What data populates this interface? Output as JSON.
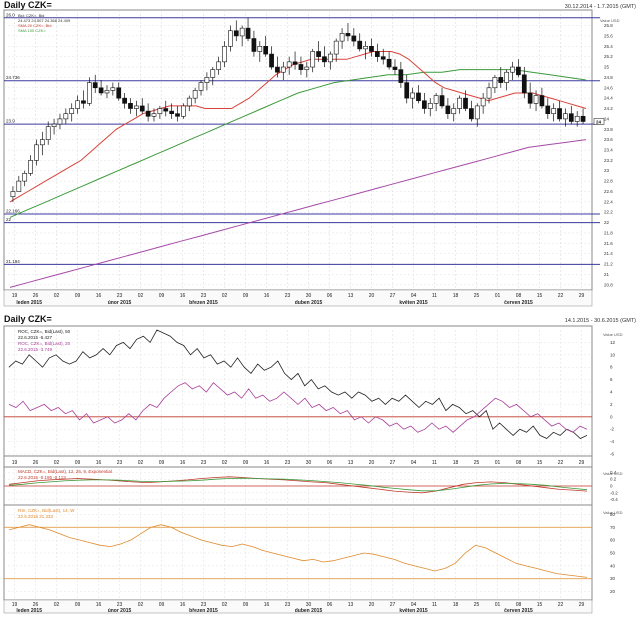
{
  "top": {
    "title": "Daily CZK=",
    "date_range": "30.12.2014 - 1.7.2015 (GMT)",
    "unit": "Value USD",
    "legend_lines": [
      "Bid: CZK=, Bid",
      "24.473 24.507 24.368 24.409",
      "SMA 20 CZK=, Bid",
      "SMA 100 CZK="
    ],
    "hlines": [
      {
        "label": "26.0",
        "value": 25.95,
        "color": "#3a3aa0"
      },
      {
        "label": "24.736",
        "value": 24.736,
        "color": "#3a3aa0"
      },
      {
        "label": "23.9",
        "value": 23.9,
        "color": "#3a3aa0"
      },
      {
        "label": "22.166",
        "value": 22.166,
        "color": "#3a3aa0"
      },
      {
        "label": "22",
        "value": 22.0,
        "color": "#3a3aa0"
      },
      {
        "label": "21.194",
        "value": 21.194,
        "color": "#3a3aa0"
      }
    ],
    "yticks": [
      "25.8",
      "25.6",
      "25.4",
      "25.2",
      "25",
      "24.8",
      "24.6",
      "24.4",
      "24.2",
      "24",
      "23.8",
      "23.6",
      "23.4",
      "23.2",
      "23",
      "22.8",
      "22.6",
      "22.4",
      "22.2",
      "22",
      "21.8",
      "21.6",
      "21.4",
      "21.2",
      "21",
      "20.8"
    ],
    "current_value": "24"
  },
  "bottom": {
    "title": "Daily CZK=",
    "date_range": "14.1.2015 - 30.6.2015 (GMT)",
    "roc1_legend": [
      "ROC, CZK=, Bid(Last), 50",
      "22.6.2015 -5.427"
    ],
    "roc2_legend": [
      "ROC, CZK=, Bid(Last), 20",
      "22.6.2015 -3.749"
    ],
    "roc_yticks": [
      "Value USD",
      "12",
      "10",
      "8",
      "6",
      "4",
      "2",
      "0",
      "-2",
      "-4",
      "-6"
    ],
    "macd_legend": [
      "MACD, CZK=, Bid(Last), 12, 26, 9, Exponential",
      "22.6.2015 -0.195 -0.113"
    ],
    "macd_yticks": [
      "Value USD",
      "0.4",
      "0.2",
      "0",
      "-0.2",
      "-0.4"
    ],
    "rsi_legend": [
      "RSI, CZK=, Bid(Last), 14, W",
      "22.6.2015 31.333"
    ],
    "rsi_yticks": [
      "Value USD",
      "80",
      "70",
      "60",
      "50",
      "40",
      "30",
      "20"
    ]
  },
  "x_axis": {
    "day_ticks": [
      "19",
      "26",
      "02",
      "09",
      "16",
      "23",
      "02",
      "09",
      "16",
      "23",
      "02",
      "09",
      "16",
      "23",
      "30",
      "06",
      "13",
      "20",
      "27",
      "04",
      "11",
      "18",
      "25",
      "01",
      "08",
      "15",
      "22",
      "29"
    ],
    "month_labels": [
      "leden 2015",
      "únor 2015",
      "březen 2015",
      "duben 2015",
      "květen 2015",
      "červen 2015"
    ]
  },
  "chart_data": [
    {
      "type": "candlestick",
      "title": "Daily CZK=",
      "ylim": [
        20.7,
        26.1
      ],
      "ohlc": [
        [
          22.5,
          22.7,
          22.4,
          22.6
        ],
        [
          22.6,
          22.9,
          22.6,
          22.8
        ],
        [
          22.8,
          23.0,
          22.7,
          22.95
        ],
        [
          22.95,
          23.3,
          22.9,
          23.2
        ],
        [
          23.2,
          23.6,
          23.1,
          23.5
        ],
        [
          23.5,
          23.75,
          23.3,
          23.6
        ],
        [
          23.6,
          23.95,
          23.5,
          23.85
        ],
        [
          23.85,
          24.0,
          23.7,
          23.9
        ],
        [
          23.9,
          24.1,
          23.8,
          24.0
        ],
        [
          24.0,
          24.2,
          23.9,
          24.1
        ],
        [
          24.1,
          24.3,
          23.95,
          24.2
        ],
        [
          24.2,
          24.45,
          24.1,
          24.35
        ],
        [
          24.35,
          24.55,
          24.2,
          24.3
        ],
        [
          24.3,
          24.8,
          24.25,
          24.7
        ],
        [
          24.7,
          24.85,
          24.5,
          24.6
        ],
        [
          24.6,
          24.75,
          24.45,
          24.5
        ],
        [
          24.5,
          24.65,
          24.4,
          24.55
        ],
        [
          24.55,
          24.7,
          24.45,
          24.6
        ],
        [
          24.6,
          24.7,
          24.35,
          24.4
        ],
        [
          24.4,
          24.5,
          24.2,
          24.3
        ],
        [
          24.3,
          24.4,
          24.1,
          24.2
        ],
        [
          24.2,
          24.35,
          24.05,
          24.25
        ],
        [
          24.25,
          24.4,
          24.1,
          24.15
        ],
        [
          24.15,
          24.3,
          23.95,
          24.05
        ],
        [
          24.05,
          24.2,
          23.95,
          24.1
        ],
        [
          24.1,
          24.25,
          24.0,
          24.2
        ],
        [
          24.2,
          24.35,
          24.05,
          24.15
        ],
        [
          24.15,
          24.3,
          24.0,
          24.1
        ],
        [
          24.1,
          24.25,
          23.95,
          24.05
        ],
        [
          24.05,
          24.3,
          24.0,
          24.25
        ],
        [
          24.25,
          24.45,
          24.15,
          24.4
        ],
        [
          24.4,
          24.6,
          24.3,
          24.55
        ],
        [
          24.55,
          24.75,
          24.45,
          24.7
        ],
        [
          24.7,
          24.9,
          24.55,
          24.8
        ],
        [
          24.8,
          25.0,
          24.65,
          24.95
        ],
        [
          24.95,
          25.2,
          24.85,
          25.1
        ],
        [
          25.1,
          25.5,
          25.0,
          25.4
        ],
        [
          25.4,
          25.8,
          25.3,
          25.7
        ],
        [
          25.7,
          25.9,
          25.5,
          25.6
        ],
        [
          25.6,
          25.8,
          25.4,
          25.75
        ],
        [
          25.75,
          25.95,
          25.5,
          25.55
        ],
        [
          25.55,
          25.7,
          25.2,
          25.3
        ],
        [
          25.3,
          25.5,
          25.1,
          25.4
        ],
        [
          25.4,
          25.6,
          25.2,
          25.25
        ],
        [
          25.25,
          25.4,
          24.95,
          25.0
        ],
        [
          25.0,
          25.2,
          24.8,
          24.9
        ],
        [
          24.9,
          25.1,
          24.75,
          25.0
        ],
        [
          25.0,
          25.2,
          24.85,
          25.1
        ],
        [
          25.1,
          25.3,
          24.95,
          25.05
        ],
        [
          25.05,
          25.2,
          24.85,
          24.95
        ],
        [
          24.95,
          25.1,
          24.8,
          25.0
        ],
        [
          25.0,
          25.35,
          24.9,
          25.3
        ],
        [
          25.3,
          25.5,
          25.1,
          25.2
        ],
        [
          25.2,
          25.4,
          25.0,
          25.1
        ],
        [
          25.1,
          25.3,
          24.95,
          25.25
        ],
        [
          25.25,
          25.55,
          25.1,
          25.5
        ],
        [
          25.5,
          25.75,
          25.35,
          25.65
        ],
        [
          25.65,
          25.85,
          25.5,
          25.6
        ],
        [
          25.6,
          25.75,
          25.4,
          25.5
        ],
        [
          25.5,
          25.65,
          25.3,
          25.35
        ],
        [
          25.35,
          25.5,
          25.15,
          25.4
        ],
        [
          25.4,
          25.55,
          25.2,
          25.3
        ],
        [
          25.3,
          25.45,
          25.1,
          25.2
        ],
        [
          25.2,
          25.35,
          25.05,
          25.15
        ],
        [
          25.15,
          25.3,
          24.95,
          25.0
        ],
        [
          25.0,
          25.15,
          24.85,
          24.95
        ],
        [
          24.95,
          25.1,
          24.6,
          24.7
        ],
        [
          24.7,
          24.85,
          24.3,
          24.4
        ],
        [
          24.4,
          24.6,
          24.2,
          24.5
        ],
        [
          24.5,
          24.65,
          24.3,
          24.35
        ],
        [
          24.35,
          24.5,
          24.1,
          24.2
        ],
        [
          24.2,
          24.4,
          24.05,
          24.3
        ],
        [
          24.3,
          24.5,
          24.15,
          24.45
        ],
        [
          24.45,
          24.6,
          24.2,
          24.25
        ],
        [
          24.25,
          24.4,
          24.0,
          24.1
        ],
        [
          24.1,
          24.3,
          23.95,
          24.2
        ],
        [
          24.2,
          24.45,
          24.1,
          24.4
        ],
        [
          24.4,
          24.55,
          24.15,
          24.2
        ],
        [
          24.2,
          24.35,
          23.95,
          24.0
        ],
        [
          24.0,
          24.3,
          23.85,
          24.25
        ],
        [
          24.25,
          24.5,
          24.1,
          24.4
        ],
        [
          24.4,
          24.7,
          24.3,
          24.6
        ],
        [
          24.6,
          24.85,
          24.5,
          24.8
        ],
        [
          24.8,
          25.0,
          24.6,
          24.7
        ],
        [
          24.7,
          24.95,
          24.55,
          24.9
        ],
        [
          24.9,
          25.1,
          24.75,
          25.0
        ],
        [
          25.0,
          25.15,
          24.8,
          24.85
        ],
        [
          24.85,
          25.0,
          24.4,
          24.5
        ],
        [
          24.5,
          24.7,
          24.2,
          24.3
        ],
        [
          24.3,
          24.55,
          24.15,
          24.45
        ],
        [
          24.45,
          24.6,
          24.2,
          24.25
        ],
        [
          24.25,
          24.4,
          24.0,
          24.1
        ],
        [
          24.1,
          24.3,
          23.95,
          24.2
        ],
        [
          24.2,
          24.35,
          23.95,
          24.0
        ],
        [
          24.0,
          24.2,
          23.85,
          24.1
        ],
        [
          24.1,
          24.25,
          23.9,
          23.95
        ],
        [
          23.95,
          24.15,
          23.85,
          24.05
        ],
        [
          24.05,
          24.2,
          23.9,
          23.95
        ]
      ],
      "sma_20": [
        22.4,
        22.5,
        22.6,
        22.7,
        22.8,
        22.9,
        23.0,
        23.1,
        23.2,
        23.35,
        23.5,
        23.65,
        23.8,
        23.9,
        24.0,
        24.1,
        24.15,
        24.2,
        24.25,
        24.25,
        24.25,
        24.25,
        24.2,
        24.2,
        24.2,
        24.2,
        24.3,
        24.4,
        24.55,
        24.7,
        24.85,
        24.95,
        25.05,
        25.1,
        25.15,
        25.15,
        25.15,
        25.15,
        25.15,
        25.2,
        25.25,
        25.3,
        25.3,
        25.3,
        25.25,
        25.15,
        25.0,
        24.85,
        24.7,
        24.6,
        24.55,
        24.5,
        24.45,
        24.4,
        24.35,
        24.4,
        24.45,
        24.5,
        24.5,
        24.5,
        24.45,
        24.4,
        24.35,
        24.3,
        24.25,
        24.2
      ],
      "sma_100": [
        22.1,
        22.25,
        22.4,
        22.55,
        22.7,
        22.85,
        23.0,
        23.15,
        23.3,
        23.45,
        23.6,
        23.75,
        23.9,
        24.05,
        24.2,
        24.35,
        24.5,
        24.6,
        24.7,
        24.75,
        24.8,
        24.85,
        24.85,
        24.9,
        24.9,
        24.95,
        24.95,
        24.95,
        24.95,
        24.9,
        24.85,
        24.8,
        24.75
      ],
      "sma_long": [
        20.75,
        20.85,
        20.95,
        21.05,
        21.15,
        21.25,
        21.35,
        21.45,
        21.55,
        21.65,
        21.75,
        21.85,
        21.95,
        22.05,
        22.15,
        22.25,
        22.35,
        22.45,
        22.55,
        22.65,
        22.75,
        22.85,
        22.95,
        23.05,
        23.15,
        23.25,
        23.35,
        23.45,
        23.5,
        23.55,
        23.6
      ],
      "hlines": [
        25.95,
        24.736,
        23.9,
        22.166,
        22.0,
        21.194
      ]
    },
    {
      "type": "line",
      "title": "ROC",
      "ylim": [
        -6,
        14
      ],
      "series": [
        {
          "name": "ROC, CZK=, Bid(Last), 50",
          "color": "#222222",
          "values": [
            8,
            9,
            8.5,
            10,
            9,
            8,
            9.5,
            10,
            9,
            8.5,
            9,
            10.5,
            9.5,
            10,
            11,
            10,
            11.5,
            12,
            11,
            12.5,
            13,
            12,
            14,
            13.5,
            13,
            12,
            11.5,
            10,
            11,
            9.5,
            10,
            8.5,
            9,
            8,
            9.5,
            8,
            7,
            8.5,
            7.5,
            8,
            9,
            7,
            6,
            7,
            5,
            6,
            4.5,
            5,
            4,
            3.5,
            4,
            3,
            4,
            3.5,
            2.5,
            3,
            2,
            3,
            2.5,
            3.5,
            2.5,
            1.5,
            2.5,
            2,
            3,
            1,
            2,
            1.5,
            0.5,
            1,
            0,
            1,
            -2,
            -1,
            -2,
            -3,
            -2,
            -2.5,
            -1.5,
            -3,
            -3.5,
            -2.5,
            -3,
            -2,
            -2.5,
            -3.5,
            -3
          ]
        },
        {
          "name": "ROC, CZK=, Bid(Last), 20",
          "color": "#a8409a",
          "values": [
            2,
            1.5,
            2.5,
            1,
            1.5,
            2,
            1,
            1.5,
            0.5,
            1,
            -0.5,
            0.5,
            -1,
            -0.5,
            0,
            -1,
            -0.5,
            0.5,
            -0.5,
            1,
            2,
            1.5,
            3,
            4,
            5,
            5.5,
            4.5,
            5,
            4,
            5.5,
            4.5,
            3.5,
            4,
            3,
            4.5,
            3,
            3.5,
            2.5,
            3,
            4,
            3,
            2,
            3,
            1.5,
            2,
            1,
            1.5,
            0.5,
            1,
            -0.5,
            0,
            -1,
            0,
            -0.5,
            -1.5,
            -1,
            -2,
            -1.5,
            -2.5,
            -2,
            -1,
            -2,
            -1.5,
            -2.5,
            -1.5,
            -0.5,
            0,
            1,
            2,
            3,
            2.5,
            1.5,
            2,
            1,
            0,
            0.5,
            -0.5,
            -1.5,
            -1,
            -2,
            -2.5,
            -1.5,
            -2
          ]
        }
      ]
    },
    {
      "type": "line",
      "title": "MACD",
      "ylim": [
        -0.5,
        0.5
      ],
      "series": [
        {
          "name": "MACD",
          "color": "#c0392b",
          "values": [
            0.05,
            0.1,
            0.15,
            0.18,
            0.2,
            0.22,
            0.2,
            0.18,
            0.15,
            0.12,
            0.1,
            0.12,
            0.15,
            0.18,
            0.22,
            0.25,
            0.27,
            0.25,
            0.22,
            0.2,
            0.18,
            0.15,
            0.12,
            0.1,
            0.05,
            0.0,
            -0.05,
            -0.1,
            -0.15,
            -0.18,
            -0.2,
            -0.15,
            -0.05,
            0.05,
            0.1,
            0.12,
            0.1,
            0.05,
            0.0,
            -0.05,
            -0.1,
            -0.12,
            -0.15
          ]
        },
        {
          "name": "Signal",
          "color": "#3c9a3c",
          "values": [
            0.02,
            0.05,
            0.09,
            0.12,
            0.15,
            0.17,
            0.18,
            0.18,
            0.17,
            0.15,
            0.13,
            0.13,
            0.14,
            0.15,
            0.17,
            0.2,
            0.22,
            0.23,
            0.22,
            0.21,
            0.2,
            0.18,
            0.16,
            0.13,
            0.1,
            0.06,
            0.02,
            -0.03,
            -0.07,
            -0.11,
            -0.14,
            -0.14,
            -0.1,
            -0.04,
            0.02,
            0.06,
            0.08,
            0.07,
            0.05,
            0.02,
            -0.03,
            -0.07,
            -0.11
          ]
        }
      ]
    },
    {
      "type": "line",
      "title": "RSI",
      "ylim": [
        15,
        85
      ],
      "series": [
        {
          "name": "RSI, CZK=, Bid(Last), 14",
          "color": "#e08a2c",
          "values": [
            68,
            70,
            72,
            70,
            68,
            65,
            62,
            60,
            58,
            56,
            55,
            57,
            60,
            65,
            70,
            72,
            70,
            66,
            63,
            60,
            58,
            56,
            55,
            57,
            55,
            52,
            50,
            48,
            46,
            44,
            45,
            43,
            44,
            46,
            48,
            50,
            49,
            47,
            45,
            42,
            40,
            38,
            36,
            38,
            42,
            50,
            56,
            54,
            50,
            46,
            42,
            40,
            38,
            36,
            34,
            33,
            32,
            31
          ]
        }
      ]
    }
  ]
}
